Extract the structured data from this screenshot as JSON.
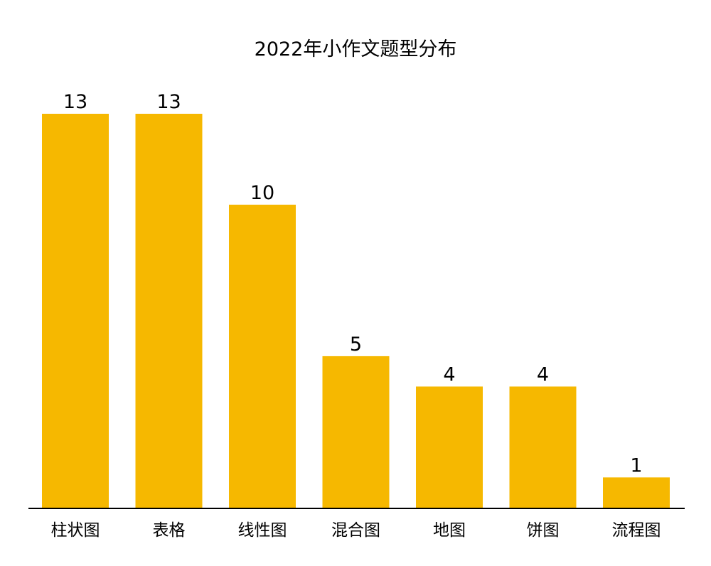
{
  "chart_data": {
    "type": "bar",
    "title": "2022年小作文题型分布",
    "xlabel": "",
    "ylabel": "",
    "categories": [
      "柱状图",
      "表格",
      "线性图",
      "混合图",
      "地图",
      "饼图",
      "流程图"
    ],
    "values": [
      13,
      13,
      10,
      5,
      4,
      4,
      1
    ],
    "value_labels": [
      "13",
      "13",
      "10",
      "5",
      "4",
      "4",
      "1"
    ],
    "ylim": [
      0,
      13
    ],
    "grid": false,
    "y_axis_visible": false,
    "bar_color": "#F6B800",
    "axis_color": "#000000",
    "text_color": "#000000"
  }
}
